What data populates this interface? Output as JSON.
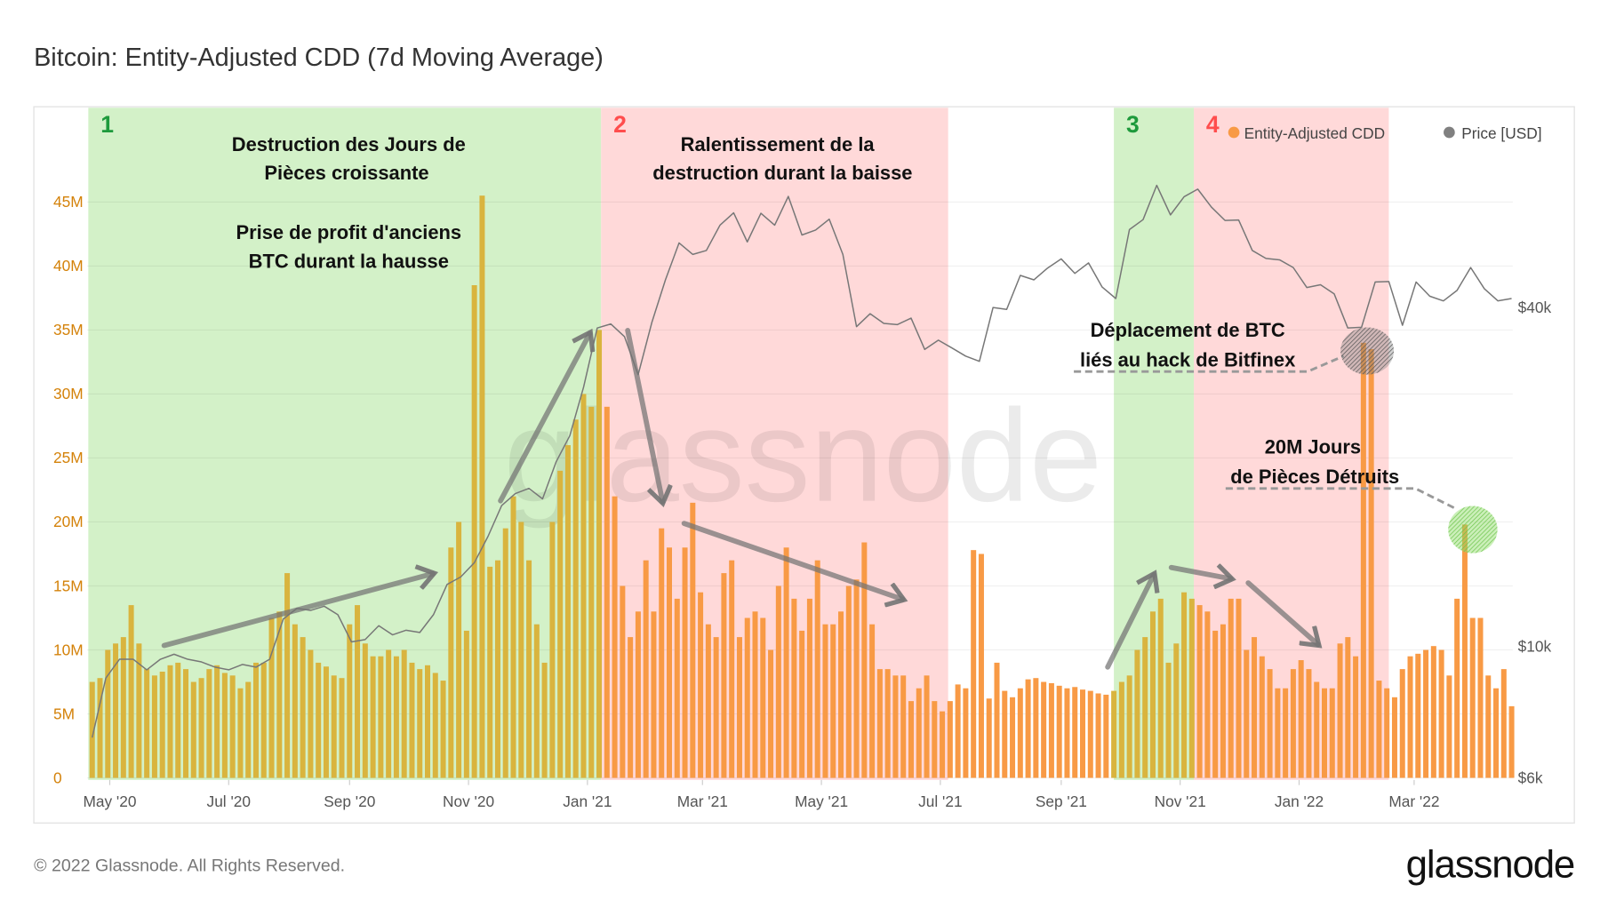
{
  "title": "Bitcoin: Entity-Adjusted CDD (7d Moving Average)",
  "footer": {
    "copyright": "© 2022 Glassnode. All Rights Reserved.",
    "logo": "glassnode"
  },
  "watermark": "glassnode",
  "legend": [
    {
      "label": "Entity-Adjusted CDD",
      "color": "#f7931a"
    },
    {
      "label": "Price [USD]",
      "color": "#808080"
    }
  ],
  "regions": [
    {
      "label": "1",
      "color": "#1e9a3c",
      "fill": "#d3f1c8",
      "from": "2020-04-20",
      "to": "2021-01-08"
    },
    {
      "label": "2",
      "color": "#ff4d4d",
      "fill": "#ffd9d9",
      "from": "2021-01-08",
      "to": "2021-07-05"
    },
    {
      "label": "3",
      "color": "#1e9a3c",
      "fill": "#d3f1c8",
      "from": "2021-09-28",
      "to": "2021-11-08"
    },
    {
      "label": "4",
      "color": "#ff4d4d",
      "fill": "#ffd9d9",
      "from": "2021-11-08",
      "to": "2022-02-16"
    }
  ],
  "annotations": {
    "growth": [
      "Destruction des Jours de",
      "Pièces croissante"
    ],
    "profit": [
      "Prise de profit d'anciens",
      "BTC durant la hausse"
    ],
    "slowdown": [
      "Ralentissement de la",
      "destruction durant la baisse"
    ],
    "bitfinex": [
      "Déplacement de BTC",
      "liés au hack de Bitfinex"
    ],
    "destroyed": [
      "20M Jours",
      "de Pièces Détruits"
    ]
  },
  "chart_data": {
    "type": "bar",
    "title": "Bitcoin: Entity-Adjusted CDD (7d Moving Average)",
    "x_ticks": [
      "May '20",
      "Jul '20",
      "Sep '20",
      "Nov '20",
      "Jan '21",
      "Mar '21",
      "May '21",
      "Jul '21",
      "Sep '21",
      "Nov '21",
      "Jan '22",
      "Mar '22"
    ],
    "y_left": {
      "ticks": [
        "0",
        "5M",
        "10M",
        "15M",
        "20M",
        "25M",
        "30M",
        "35M",
        "40M",
        "45M"
      ],
      "range": [
        0,
        45000000
      ]
    },
    "y_right": {
      "scale": "log",
      "ticks": [
        "$6k",
        "$10k",
        "$40k"
      ],
      "range": [
        6000,
        70000
      ]
    },
    "grid": true,
    "legend_position": "top-right",
    "series": [
      {
        "name": "Entity-Adjusted CDD",
        "type": "bar",
        "axis": "left",
        "unit": "M",
        "start": "2020-04-22",
        "interval_days": 4,
        "values": [
          7.5,
          7.8,
          10,
          10.5,
          11,
          13.5,
          10.5,
          8.5,
          8,
          8.3,
          8.8,
          9,
          8.5,
          7.5,
          7.8,
          8.5,
          8.8,
          8.2,
          8,
          7,
          7.5,
          9,
          9,
          12.5,
          13,
          16,
          12,
          11,
          10,
          9,
          8.7,
          8,
          7.8,
          12,
          13.5,
          10.5,
          9.5,
          9.5,
          10,
          9.5,
          10,
          9,
          8.5,
          8.8,
          8.2,
          7.6,
          18,
          20,
          11.5,
          38.5,
          45.5,
          16.5,
          17,
          19.5,
          22,
          20,
          17,
          12,
          9,
          20,
          24,
          26,
          28,
          30,
          29,
          35,
          29,
          22,
          15,
          11,
          13,
          17,
          13,
          19.5,
          18,
          14,
          18,
          21.5,
          14.5,
          12,
          11,
          16,
          17,
          11,
          12.5,
          13,
          12.5,
          10,
          15,
          18,
          14,
          11.5,
          14,
          17,
          12,
          12,
          13,
          15,
          15.5,
          18.4,
          12,
          8.5,
          8.5,
          8,
          8,
          6,
          7,
          8,
          6,
          5.2,
          6,
          7.3,
          7,
          17.8,
          17.5,
          6.2,
          9,
          6.8,
          6.3,
          7,
          7.7,
          7.8,
          7.5,
          7.4,
          7.2,
          7,
          7.1,
          6.9,
          6.8,
          6.6,
          6.5,
          6.8,
          7.5,
          8,
          10,
          11,
          13,
          14,
          9,
          10.5,
          14.5,
          14,
          13.5,
          13,
          11.5,
          12,
          14,
          14,
          10,
          11,
          9.5,
          8.5,
          7,
          7,
          8.5,
          9.2,
          8.5,
          7.5,
          7,
          7,
          10.5,
          11,
          9.5,
          34,
          33.5,
          7.6,
          7,
          6.3,
          8.5,
          9.5,
          9.7,
          10,
          10.3,
          10,
          8,
          14,
          19.8,
          12.5,
          12.5,
          8,
          7,
          8.5,
          5.6
        ]
      },
      {
        "name": "Price [USD]",
        "type": "line",
        "axis": "right",
        "unit": "k USD",
        "start": "2020-04-22",
        "interval_days": 7,
        "values": [
          6.9,
          8.8,
          9.5,
          9.5,
          9.1,
          9.5,
          9.7,
          9.5,
          9.4,
          9.2,
          9.1,
          9.3,
          9.2,
          9.5,
          11.2,
          11.7,
          11.6,
          11.8,
          11.4,
          10.2,
          10.3,
          10.9,
          10.5,
          10.7,
          10.6,
          11.4,
          12.9,
          13.3,
          14.1,
          15.7,
          17.8,
          18.7,
          19.1,
          18.3,
          21.3,
          23.7,
          28.9,
          36.8,
          37.4,
          35.5,
          30.4,
          37.6,
          44.8,
          52.1,
          49.7,
          50.5,
          56,
          58.9,
          52.3,
          58.8,
          56,
          63,
          53.8,
          54.9,
          57.4,
          49.7,
          37,
          39,
          37.5,
          37.3,
          38.3,
          33.7,
          35,
          33.9,
          32.8,
          32.1,
          40,
          39.7,
          45.6,
          44.8,
          47,
          48.8,
          46,
          48,
          43.5,
          41.5,
          55,
          57.3,
          65.9,
          58.4,
          62.9,
          64.9,
          60.3,
          57.1,
          57.2,
          50.5,
          48.9,
          48.6,
          47.1,
          43.4,
          43.9,
          42.3,
          36.8,
          36.9,
          44.4,
          44.5,
          37.2,
          44.4,
          41.9,
          41.1,
          42.9,
          47.1,
          43.2,
          41.1,
          41.5
        ]
      }
    ]
  }
}
